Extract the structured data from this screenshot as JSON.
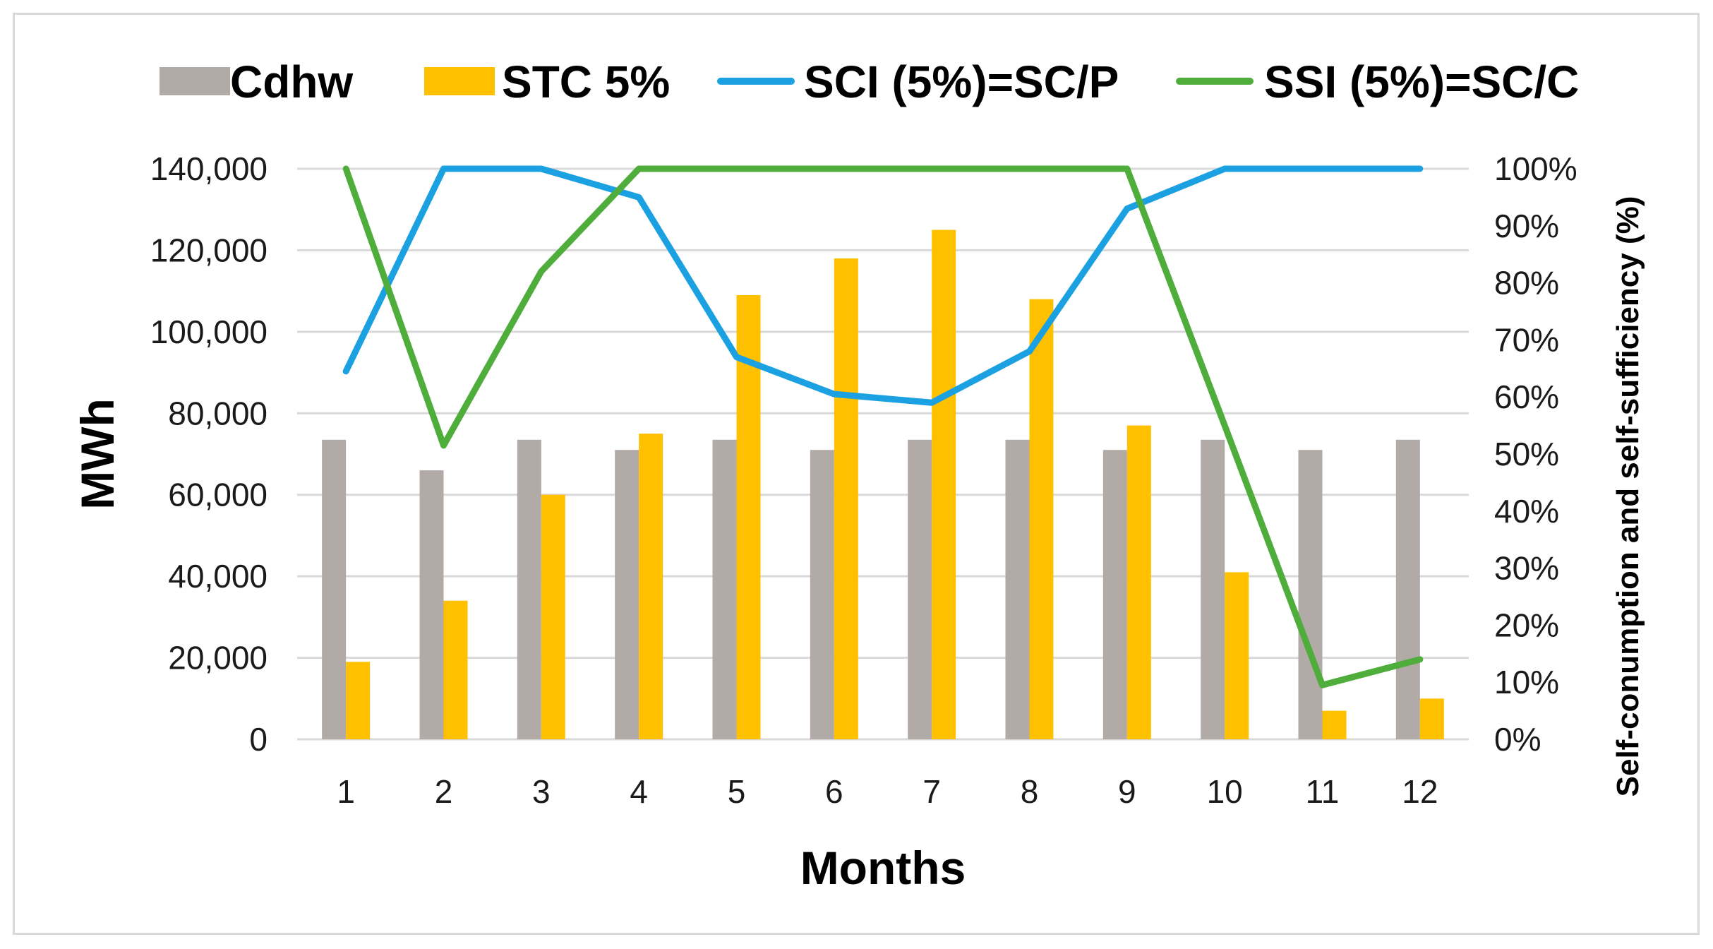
{
  "chart_data": {
    "type": "bar+line",
    "title": "",
    "xlabel": "Months",
    "ylabel": "MWh",
    "y2label": "Self-conumption and self-sufficiency (%)",
    "categories": [
      "1",
      "2",
      "3",
      "4",
      "5",
      "6",
      "7",
      "8",
      "9",
      "10",
      "11",
      "12"
    ],
    "ylim": [
      0,
      140000
    ],
    "y2lim": [
      0,
      100
    ],
    "yticks": [
      "0",
      "20,000",
      "40,000",
      "60,000",
      "80,000",
      "100,000",
      "120,000",
      "140,000"
    ],
    "y2ticks": [
      "0%",
      "10%",
      "20%",
      "30%",
      "40%",
      "50%",
      "60%",
      "70%",
      "80%",
      "90%",
      "100%"
    ],
    "legend_position": "top",
    "grid": true,
    "series": [
      {
        "name": "Cdhw",
        "type": "bar",
        "axis": "left",
        "color": "#b1aaa6",
        "values": [
          73500,
          66000,
          73500,
          71000,
          73500,
          71000,
          73500,
          73500,
          71000,
          73500,
          71000,
          73500
        ]
      },
      {
        "name": "STC 5%",
        "type": "bar",
        "axis": "left",
        "color": "#ffc000",
        "values": [
          19000,
          34000,
          60000,
          75000,
          109000,
          118000,
          125000,
          108000,
          77000,
          41000,
          7000,
          10000
        ]
      },
      {
        "name": "SCI (5%)=SC/P",
        "type": "line",
        "axis": "right",
        "color": "#1ba1e2",
        "values": [
          64.5,
          100,
          100,
          95,
          67,
          60.5,
          59,
          68,
          93,
          100,
          100,
          100
        ]
      },
      {
        "name": "SSI (5%)=SC/C",
        "type": "line",
        "axis": "right",
        "color": "#4fad3b",
        "values": [
          100,
          51.5,
          82,
          100,
          100,
          100,
          100,
          100,
          100,
          55,
          9.5,
          14
        ]
      }
    ]
  }
}
